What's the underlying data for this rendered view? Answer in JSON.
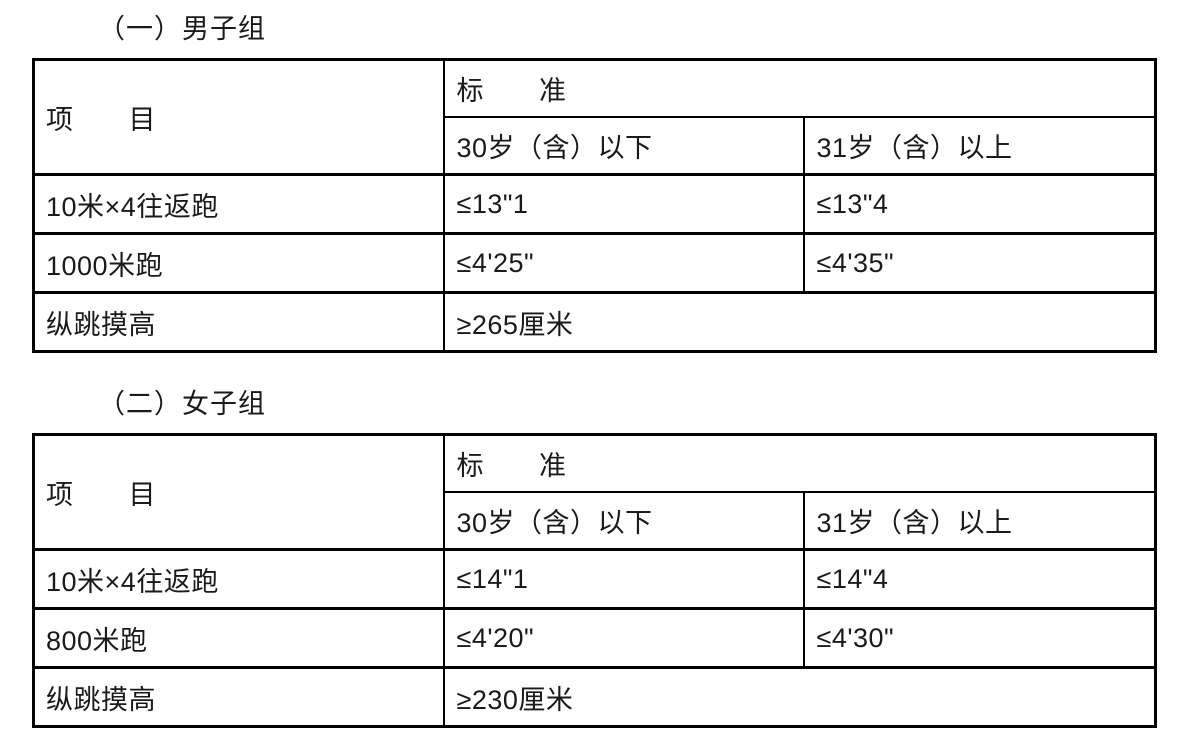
{
  "page": {
    "background": "#ffffff",
    "text_color": "#1a1a1a",
    "border_color": "#000000"
  },
  "sections": [
    {
      "id": "mens",
      "heading": "（一）男子组",
      "table": {
        "item_header": "项　　目",
        "standard_header": "标　　准",
        "age_headers": [
          "30岁（含）以下",
          "31岁（含）以上"
        ],
        "rows": [
          {
            "item": "10米×4往返跑",
            "under30": "≤13\"1",
            "over31": "≤13\"4"
          },
          {
            "item": "1000米跑",
            "under30": "≤4'25\"",
            "over31": "≤4'35\""
          },
          {
            "item": "纵跳摸高",
            "merged": "≥265厘米"
          }
        ]
      }
    },
    {
      "id": "womens",
      "heading": "（二）女子组",
      "table": {
        "item_header": "项　　目",
        "standard_header": "标　　准",
        "age_headers": [
          "30岁（含）以下",
          "31岁（含）以上"
        ],
        "rows": [
          {
            "item": "10米×4往返跑",
            "under30": "≤14\"1",
            "over31": "≤14\"4"
          },
          {
            "item": "800米跑",
            "under30": "≤4'20\"",
            "over31": "≤4'30\""
          },
          {
            "item": "纵跳摸高",
            "merged": "≥230厘米"
          }
        ]
      }
    }
  ]
}
